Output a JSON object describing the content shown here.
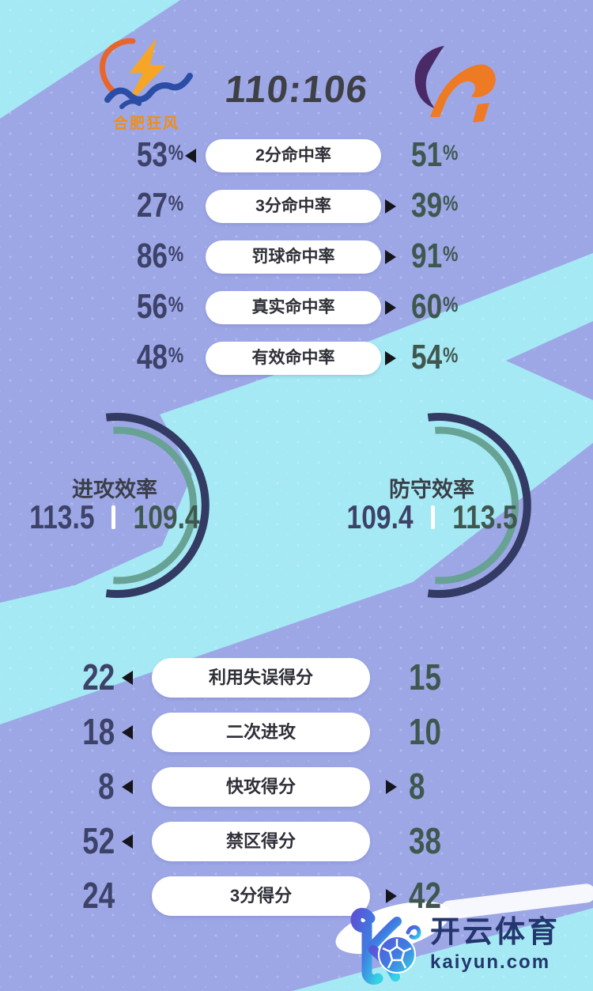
{
  "header": {
    "score": "110:106",
    "home_team": {
      "name": "合肥狂风",
      "logo": "lightning-wave-logo"
    },
    "away_team": {
      "logo": "bull-logo"
    }
  },
  "shooting_stats": [
    {
      "label": "2分命中率",
      "home": "53%",
      "away": "51%",
      "leader": "home"
    },
    {
      "label": "3分命中率",
      "home": "27%",
      "away": "39%",
      "leader": "away"
    },
    {
      "label": "罚球命中率",
      "home": "86%",
      "away": "91%",
      "leader": "away"
    },
    {
      "label": "真实命中率",
      "home": "56%",
      "away": "60%",
      "leader": "away"
    },
    {
      "label": "有效命中率",
      "home": "48%",
      "away": "54%",
      "leader": "away"
    }
  ],
  "efficiency_gauges": [
    {
      "label": "进攻效率",
      "home": "113.5",
      "away": "109.4"
    },
    {
      "label": "防守效率",
      "home": "109.4",
      "away": "113.5"
    }
  ],
  "scoring_stats": [
    {
      "label": "利用失误得分",
      "home": "22",
      "away": "15",
      "leader": "home"
    },
    {
      "label": "二次进攻",
      "home": "18",
      "away": "10",
      "leader": "home"
    },
    {
      "label": "快攻得分",
      "home": "8",
      "away": "8",
      "leader": "both"
    },
    {
      "label": "禁区得分",
      "home": "52",
      "away": "38",
      "leader": "home"
    },
    {
      "label": "3分得分",
      "home": "24",
      "away": "42",
      "leader": "away"
    }
  ],
  "watermark": {
    "brand": "开云体育",
    "domain": "kaiyun.com"
  },
  "colors": {
    "background_periwinkle": "#9da7e6",
    "background_cyan": "#a5e9f4",
    "home_value_navy": "#3d4268",
    "away_value_teal": "#3f584f",
    "pill_white": "#ffffff",
    "arc_navy": "#333a63",
    "arc_teal": "#68a295",
    "score_text": "#3e4046",
    "team_name_orange": "#ef8d18",
    "watermark_navy": "#23366e"
  },
  "chart_data": {
    "type": "table",
    "title": "110:106",
    "teams": [
      "合肥狂风 (home/left)",
      "away/right"
    ],
    "rows": [
      {
        "metric": "2分命中率",
        "home": 53,
        "away": 51,
        "unit": "%"
      },
      {
        "metric": "3分命中率",
        "home": 27,
        "away": 39,
        "unit": "%"
      },
      {
        "metric": "罚球命中率",
        "home": 86,
        "away": 91,
        "unit": "%"
      },
      {
        "metric": "真实命中率",
        "home": 56,
        "away": 60,
        "unit": "%"
      },
      {
        "metric": "有效命中率",
        "home": 48,
        "away": 54,
        "unit": "%"
      },
      {
        "metric": "进攻效率",
        "home": 113.5,
        "away": 109.4
      },
      {
        "metric": "防守效率",
        "home": 109.4,
        "away": 113.5
      },
      {
        "metric": "利用失误得分",
        "home": 22,
        "away": 15
      },
      {
        "metric": "二次进攻",
        "home": 18,
        "away": 10
      },
      {
        "metric": "快攻得分",
        "home": 8,
        "away": 8
      },
      {
        "metric": "禁区得分",
        "home": 52,
        "away": 38
      },
      {
        "metric": "3分得分",
        "home": 24,
        "away": 42
      }
    ]
  }
}
